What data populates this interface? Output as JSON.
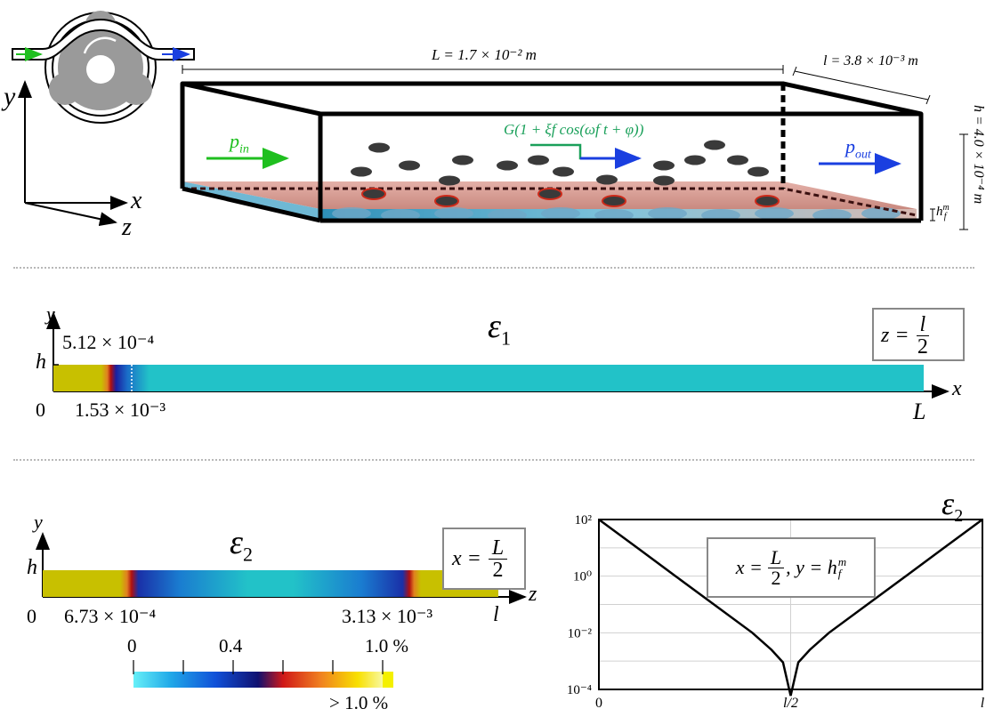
{
  "top": {
    "length_label": "L = 1.7 × 10⁻² m",
    "width_label": "l = 3.8 × 10⁻³ m",
    "height_label": "h = 4.0 × 10⁻⁴ m",
    "film_label": "h",
    "film_sup": "m",
    "film_sub": "f",
    "forcing_label": "G(1 + ξf cos(ωf t + φ))",
    "p_in": "p",
    "p_in_sub": "in",
    "p_out": "p",
    "p_out_sub": "out",
    "axes": {
      "y": "y",
      "x": "x",
      "z": "z"
    },
    "colors": {
      "inflow": "#1fbf1f",
      "outflow": "#1a3fe0",
      "forcing": "#1aa05a",
      "cell": "#3a3a3a",
      "cell_red": "#cc2a1a"
    }
  },
  "panel1": {
    "title": "ε",
    "title_sub": "1",
    "y_axis": "y",
    "x_axis": "x",
    "h": "h",
    "origin": "0",
    "L": "L",
    "thickness": "5.12 × 10⁻⁴",
    "front": "1.53 × 10⁻³",
    "slice_lhs": "z =",
    "slice_num": "l",
    "slice_den": "2"
  },
  "panel2": {
    "title": "ε",
    "title_sub": "2",
    "y_axis": "y",
    "z_axis": "z",
    "h": "h",
    "origin": "0",
    "l": "l",
    "left_front": "6.73 × 10⁻⁴",
    "right_front": "3.13 × 10⁻³",
    "slice_lhs": "x =",
    "slice_num": "L",
    "slice_den": "2"
  },
  "colorbar": {
    "ticks": [
      "0",
      "0.4",
      "1.0 %"
    ],
    "over": "> 1.0 %"
  },
  "chart_data": {
    "type": "line",
    "title": "ε",
    "title_sub": "2",
    "annotation": {
      "lhs": "x =",
      "num": "L",
      "den": "2",
      "rest": ", y = h",
      "sup": "m",
      "sub": "f"
    },
    "x_ticks": [
      "0",
      "l/2",
      "l"
    ],
    "y_ticks": [
      "10²",
      "10⁰",
      "10⁻²",
      "10⁻⁴"
    ],
    "y_scale": "log",
    "ylim": [
      0.0001,
      100
    ],
    "xlim": [
      0,
      1
    ],
    "grid": true,
    "series": [
      {
        "x": [
          0,
          0.1,
          0.2,
          0.3,
          0.4,
          0.45,
          0.48,
          0.5,
          0.52,
          0.55,
          0.6,
          0.7,
          0.8,
          0.9,
          1.0
        ],
        "y": [
          100,
          10,
          1,
          0.1,
          0.01,
          0.0025,
          0.0009,
          6e-05,
          0.0009,
          0.0025,
          0.01,
          0.1,
          1,
          10,
          100
        ]
      }
    ]
  }
}
